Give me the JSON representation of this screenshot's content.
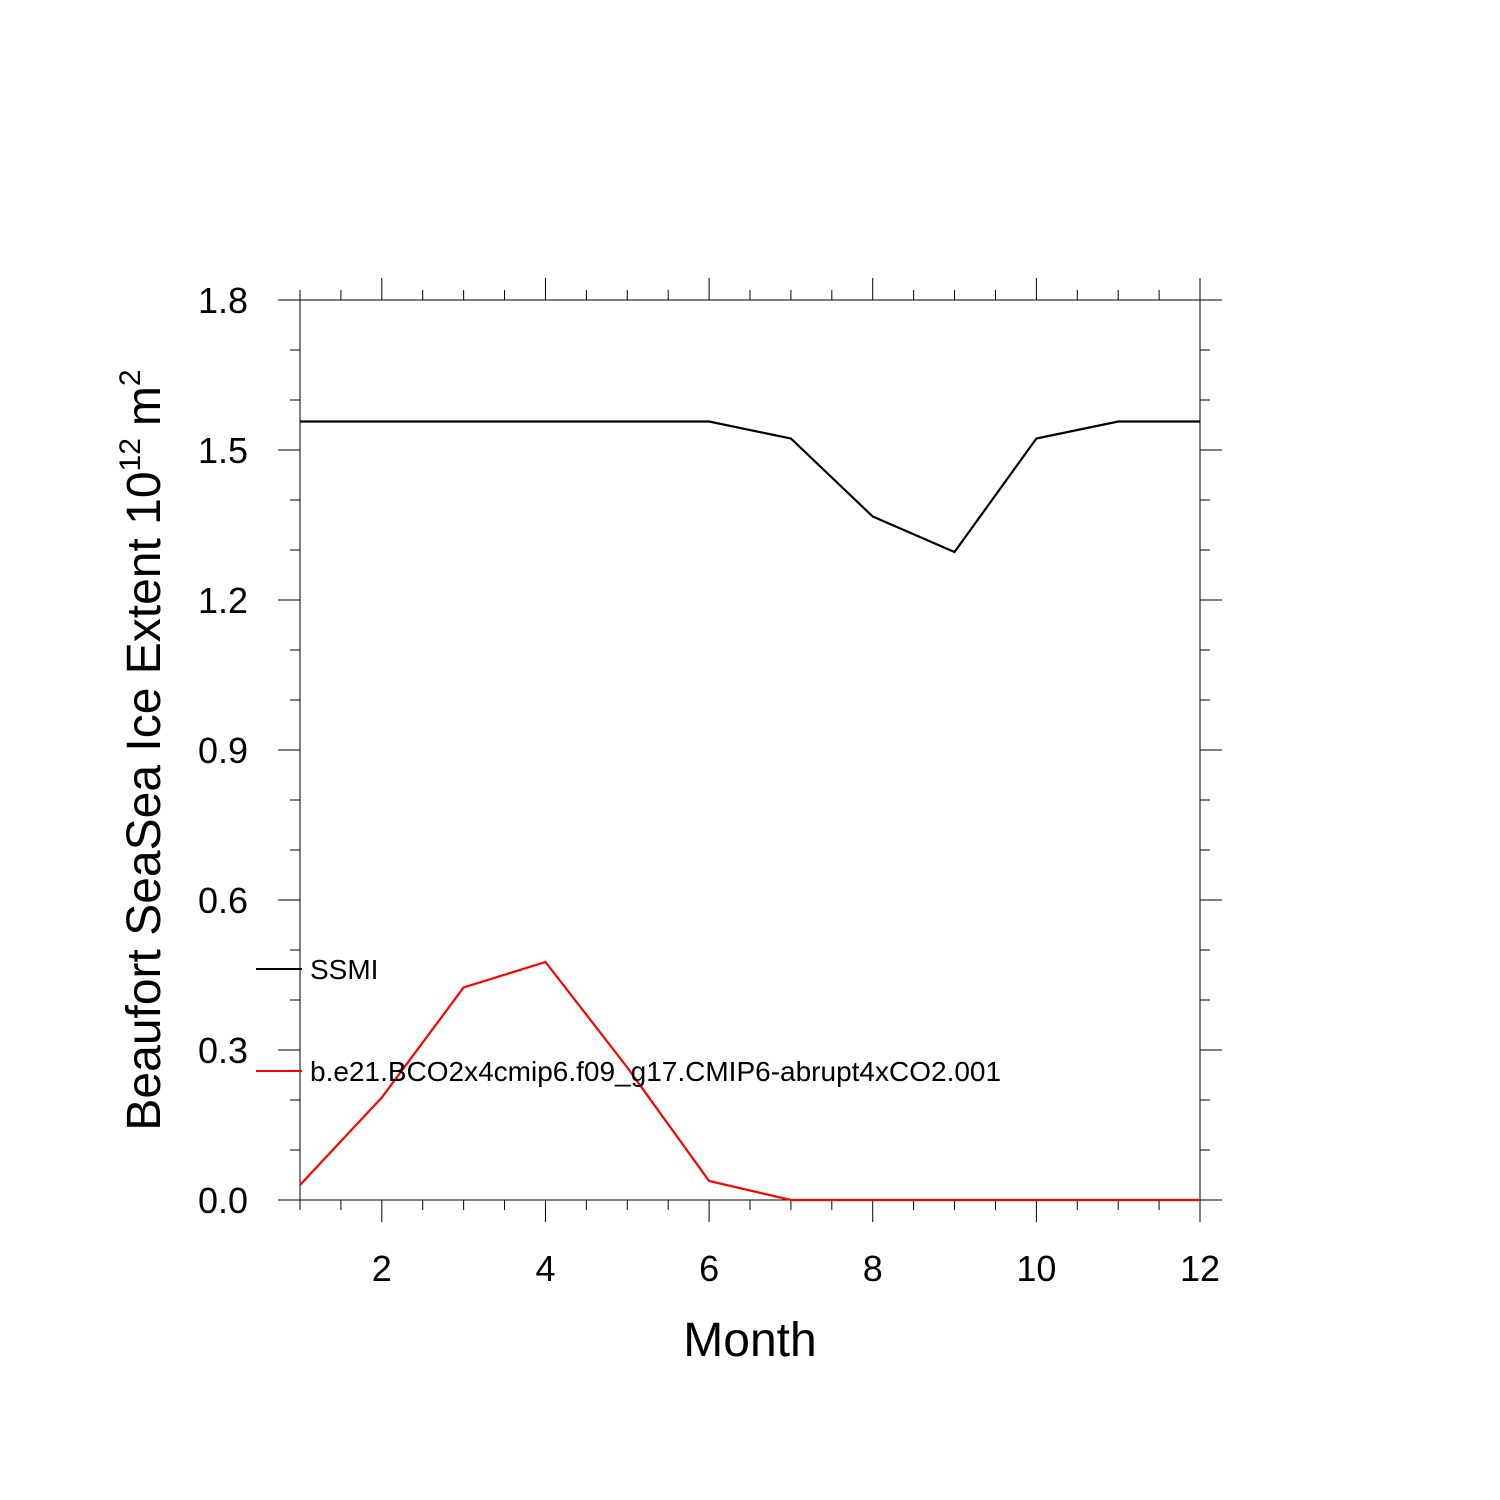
{
  "chart_data": {
    "type": "line",
    "title": "",
    "xlabel": "Month",
    "ylabel": "Beaufort SeaSea Ice Extent 10",
    "ylabel_exponent": "12",
    "ylabel_unit": "m",
    "ylabel_unit_exponent": "2",
    "xlim": [
      1,
      12
    ],
    "ylim": [
      0,
      1.8
    ],
    "x_ticks": [
      2,
      4,
      6,
      8,
      10,
      12
    ],
    "x_tick_labels": [
      "2",
      "4",
      "6",
      "8",
      "10",
      "12"
    ],
    "y_ticks": [
      0,
      0.3,
      0.6,
      0.9,
      1.2,
      1.5,
      1.8
    ],
    "y_tick_labels": [
      "0.0",
      "0.3",
      "0.6",
      "0.9",
      "1.2",
      "1.5",
      "1.8"
    ],
    "grid": false,
    "legend_position": "left-middle",
    "x": [
      1,
      2,
      3,
      4,
      5,
      6,
      7,
      8,
      9,
      10,
      11,
      12
    ],
    "series": [
      {
        "name": "SSMI",
        "color": "#000000",
        "values": [
          1.557,
          1.557,
          1.557,
          1.557,
          1.557,
          1.557,
          1.523,
          1.367,
          1.296,
          1.523,
          1.557,
          1.557
        ]
      },
      {
        "name": "b.e21.BCO2x4cmip6.f09_g17.CMIP6-abrupt4xCO2.001",
        "color": "#ff0000",
        "values": [
          0.03,
          0.205,
          0.425,
          0.476,
          0.265,
          0.038,
          0.0,
          0.0,
          0.0,
          0.0,
          0.0,
          0.0
        ]
      }
    ]
  }
}
